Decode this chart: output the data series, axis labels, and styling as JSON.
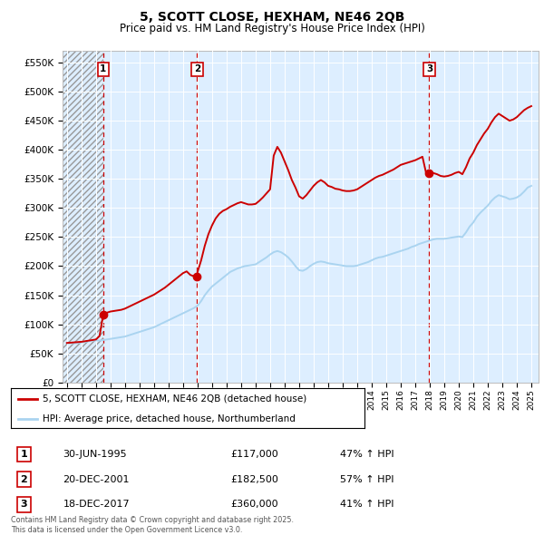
{
  "title_line1": "5, SCOTT CLOSE, HEXHAM, NE46 2QB",
  "title_line2": "Price paid vs. HM Land Registry's House Price Index (HPI)",
  "ylabel_ticks": [
    "£0",
    "£50K",
    "£100K",
    "£150K",
    "£200K",
    "£250K",
    "£300K",
    "£350K",
    "£400K",
    "£450K",
    "£500K",
    "£550K"
  ],
  "ytick_values": [
    0,
    50000,
    100000,
    150000,
    200000,
    250000,
    300000,
    350000,
    400000,
    450000,
    500000,
    550000
  ],
  "ylim": [
    0,
    570000
  ],
  "xlim_start": 1992.7,
  "xlim_end": 2025.5,
  "xtick_years": [
    1993,
    1994,
    1995,
    1996,
    1997,
    1998,
    1999,
    2000,
    2001,
    2002,
    2003,
    2004,
    2005,
    2006,
    2007,
    2008,
    2009,
    2010,
    2011,
    2012,
    2013,
    2014,
    2015,
    2016,
    2017,
    2018,
    2019,
    2020,
    2021,
    2022,
    2023,
    2024,
    2025
  ],
  "hpi_color": "#aad4f0",
  "price_color": "#cc0000",
  "sale_marker_color": "#cc0000",
  "vline_color": "#cc0000",
  "background_chart": "#ddeeff",
  "legend_label_price": "5, SCOTT CLOSE, HEXHAM, NE46 2QB (detached house)",
  "legend_label_hpi": "HPI: Average price, detached house, Northumberland",
  "sale1_date": "30-JUN-1995",
  "sale1_price": 117000,
  "sale1_x": 1995.5,
  "sale1_pct": "47% ↑ HPI",
  "sale2_date": "20-DEC-2001",
  "sale2_price": 182500,
  "sale2_x": 2001.97,
  "sale2_pct": "57% ↑ HPI",
  "sale3_date": "18-DEC-2017",
  "sale3_price": 360000,
  "sale3_x": 2017.97,
  "sale3_pct": "41% ↑ HPI",
  "footer_line1": "Contains HM Land Registry data © Crown copyright and database right 2025.",
  "footer_line2": "This data is licensed under the Open Government Licence v3.0.",
  "hpi_data": [
    [
      1993.0,
      68000
    ],
    [
      1993.25,
      67500
    ],
    [
      1993.5,
      67500
    ],
    [
      1993.75,
      68000
    ],
    [
      1994.0,
      69000
    ],
    [
      1994.25,
      70000
    ],
    [
      1994.5,
      71000
    ],
    [
      1994.75,
      72000
    ],
    [
      1995.0,
      72500
    ],
    [
      1995.25,
      72000
    ],
    [
      1995.5,
      73000
    ],
    [
      1995.75,
      74000
    ],
    [
      1996.0,
      75000
    ],
    [
      1996.25,
      76000
    ],
    [
      1996.5,
      77000
    ],
    [
      1996.75,
      78000
    ],
    [
      1997.0,
      79000
    ],
    [
      1997.25,
      81000
    ],
    [
      1997.5,
      83000
    ],
    [
      1997.75,
      85000
    ],
    [
      1998.0,
      87000
    ],
    [
      1998.25,
      89000
    ],
    [
      1998.5,
      91000
    ],
    [
      1998.75,
      93000
    ],
    [
      1999.0,
      95000
    ],
    [
      1999.25,
      98000
    ],
    [
      1999.5,
      101000
    ],
    [
      1999.75,
      104000
    ],
    [
      2000.0,
      107000
    ],
    [
      2000.25,
      110000
    ],
    [
      2000.5,
      113000
    ],
    [
      2000.75,
      116000
    ],
    [
      2001.0,
      119000
    ],
    [
      2001.25,
      122000
    ],
    [
      2001.5,
      125000
    ],
    [
      2001.75,
      128000
    ],
    [
      2002.0,
      132000
    ],
    [
      2002.25,
      140000
    ],
    [
      2002.5,
      150000
    ],
    [
      2002.75,
      158000
    ],
    [
      2003.0,
      165000
    ],
    [
      2003.25,
      170000
    ],
    [
      2003.5,
      175000
    ],
    [
      2003.75,
      180000
    ],
    [
      2004.0,
      185000
    ],
    [
      2004.25,
      190000
    ],
    [
      2004.5,
      193000
    ],
    [
      2004.75,
      196000
    ],
    [
      2005.0,
      198000
    ],
    [
      2005.25,
      200000
    ],
    [
      2005.5,
      201000
    ],
    [
      2005.75,
      202000
    ],
    [
      2006.0,
      203000
    ],
    [
      2006.25,
      207000
    ],
    [
      2006.5,
      211000
    ],
    [
      2006.75,
      215000
    ],
    [
      2007.0,
      220000
    ],
    [
      2007.25,
      224000
    ],
    [
      2007.5,
      226000
    ],
    [
      2007.75,
      224000
    ],
    [
      2008.0,
      220000
    ],
    [
      2008.25,
      215000
    ],
    [
      2008.5,
      208000
    ],
    [
      2008.75,
      200000
    ],
    [
      2009.0,
      193000
    ],
    [
      2009.25,
      192000
    ],
    [
      2009.5,
      195000
    ],
    [
      2009.75,
      200000
    ],
    [
      2010.0,
      204000
    ],
    [
      2010.25,
      207000
    ],
    [
      2010.5,
      208000
    ],
    [
      2010.75,
      207000
    ],
    [
      2011.0,
      205000
    ],
    [
      2011.25,
      204000
    ],
    [
      2011.5,
      203000
    ],
    [
      2011.75,
      202000
    ],
    [
      2012.0,
      201000
    ],
    [
      2012.25,
      200000
    ],
    [
      2012.5,
      200000
    ],
    [
      2012.75,
      200000
    ],
    [
      2013.0,
      201000
    ],
    [
      2013.25,
      203000
    ],
    [
      2013.5,
      205000
    ],
    [
      2013.75,
      207000
    ],
    [
      2014.0,
      210000
    ],
    [
      2014.25,
      213000
    ],
    [
      2014.5,
      215000
    ],
    [
      2014.75,
      216000
    ],
    [
      2015.0,
      218000
    ],
    [
      2015.25,
      220000
    ],
    [
      2015.5,
      222000
    ],
    [
      2015.75,
      224000
    ],
    [
      2016.0,
      226000
    ],
    [
      2016.25,
      228000
    ],
    [
      2016.5,
      230000
    ],
    [
      2016.75,
      233000
    ],
    [
      2017.0,
      235000
    ],
    [
      2017.25,
      238000
    ],
    [
      2017.5,
      240000
    ],
    [
      2017.75,
      242000
    ],
    [
      2018.0,
      244000
    ],
    [
      2018.25,
      246000
    ],
    [
      2018.5,
      247000
    ],
    [
      2018.75,
      247000
    ],
    [
      2019.0,
      247000
    ],
    [
      2019.25,
      248000
    ],
    [
      2019.5,
      249000
    ],
    [
      2019.75,
      250000
    ],
    [
      2020.0,
      251000
    ],
    [
      2020.25,
      250000
    ],
    [
      2020.5,
      258000
    ],
    [
      2020.75,
      268000
    ],
    [
      2021.0,
      275000
    ],
    [
      2021.25,
      285000
    ],
    [
      2021.5,
      292000
    ],
    [
      2021.75,
      298000
    ],
    [
      2022.0,
      304000
    ],
    [
      2022.25,
      312000
    ],
    [
      2022.5,
      318000
    ],
    [
      2022.75,
      322000
    ],
    [
      2023.0,
      320000
    ],
    [
      2023.25,
      318000
    ],
    [
      2023.5,
      315000
    ],
    [
      2023.75,
      316000
    ],
    [
      2024.0,
      318000
    ],
    [
      2024.25,
      322000
    ],
    [
      2024.5,
      328000
    ],
    [
      2024.75,
      335000
    ],
    [
      2025.0,
      338000
    ]
  ],
  "price_data": [
    [
      1993.0,
      68000
    ],
    [
      1993.25,
      68500
    ],
    [
      1993.5,
      69000
    ],
    [
      1993.75,
      69500
    ],
    [
      1994.0,
      70000
    ],
    [
      1994.25,
      71000
    ],
    [
      1994.5,
      72000
    ],
    [
      1994.75,
      73000
    ],
    [
      1995.0,
      74000
    ],
    [
      1995.25,
      80000
    ],
    [
      1995.5,
      117000
    ],
    [
      1995.75,
      120000
    ],
    [
      1996.0,
      122000
    ],
    [
      1996.25,
      123000
    ],
    [
      1996.5,
      124000
    ],
    [
      1996.75,
      125000
    ],
    [
      1997.0,
      127000
    ],
    [
      1997.25,
      130000
    ],
    [
      1997.5,
      133000
    ],
    [
      1997.75,
      136000
    ],
    [
      1998.0,
      139000
    ],
    [
      1998.25,
      142000
    ],
    [
      1998.5,
      145000
    ],
    [
      1998.75,
      148000
    ],
    [
      1999.0,
      151000
    ],
    [
      1999.25,
      155000
    ],
    [
      1999.5,
      159000
    ],
    [
      1999.75,
      163000
    ],
    [
      2000.0,
      168000
    ],
    [
      2000.25,
      173000
    ],
    [
      2000.5,
      178000
    ],
    [
      2000.75,
      183000
    ],
    [
      2001.0,
      188000
    ],
    [
      2001.25,
      191000
    ],
    [
      2001.5,
      185000
    ],
    [
      2001.75,
      182500
    ],
    [
      2001.97,
      182500
    ],
    [
      2002.0,
      190000
    ],
    [
      2002.25,
      210000
    ],
    [
      2002.5,
      235000
    ],
    [
      2002.75,
      255000
    ],
    [
      2003.0,
      270000
    ],
    [
      2003.25,
      282000
    ],
    [
      2003.5,
      290000
    ],
    [
      2003.75,
      295000
    ],
    [
      2004.0,
      298000
    ],
    [
      2004.25,
      302000
    ],
    [
      2004.5,
      305000
    ],
    [
      2004.75,
      308000
    ],
    [
      2005.0,
      310000
    ],
    [
      2005.25,
      308000
    ],
    [
      2005.5,
      306000
    ],
    [
      2005.75,
      306000
    ],
    [
      2006.0,
      307000
    ],
    [
      2006.25,
      312000
    ],
    [
      2006.5,
      318000
    ],
    [
      2006.75,
      325000
    ],
    [
      2007.0,
      332000
    ],
    [
      2007.25,
      390000
    ],
    [
      2007.5,
      405000
    ],
    [
      2007.75,
      395000
    ],
    [
      2008.0,
      380000
    ],
    [
      2008.25,
      365000
    ],
    [
      2008.5,
      348000
    ],
    [
      2008.75,
      335000
    ],
    [
      2009.0,
      320000
    ],
    [
      2009.25,
      316000
    ],
    [
      2009.5,
      322000
    ],
    [
      2009.75,
      330000
    ],
    [
      2010.0,
      338000
    ],
    [
      2010.25,
      344000
    ],
    [
      2010.5,
      348000
    ],
    [
      2010.75,
      344000
    ],
    [
      2011.0,
      338000
    ],
    [
      2011.25,
      336000
    ],
    [
      2011.5,
      333000
    ],
    [
      2011.75,
      332000
    ],
    [
      2012.0,
      330000
    ],
    [
      2012.25,
      329000
    ],
    [
      2012.5,
      329000
    ],
    [
      2012.75,
      330000
    ],
    [
      2013.0,
      332000
    ],
    [
      2013.25,
      336000
    ],
    [
      2013.5,
      340000
    ],
    [
      2013.75,
      344000
    ],
    [
      2014.0,
      348000
    ],
    [
      2014.25,
      352000
    ],
    [
      2014.5,
      355000
    ],
    [
      2014.75,
      357000
    ],
    [
      2015.0,
      360000
    ],
    [
      2015.25,
      363000
    ],
    [
      2015.5,
      366000
    ],
    [
      2015.75,
      370000
    ],
    [
      2016.0,
      374000
    ],
    [
      2016.25,
      376000
    ],
    [
      2016.5,
      378000
    ],
    [
      2016.75,
      380000
    ],
    [
      2017.0,
      382000
    ],
    [
      2017.25,
      385000
    ],
    [
      2017.5,
      388000
    ],
    [
      2017.75,
      360000
    ],
    [
      2017.97,
      360000
    ],
    [
      2018.0,
      362000
    ],
    [
      2018.25,
      360000
    ],
    [
      2018.5,
      358000
    ],
    [
      2018.75,
      355000
    ],
    [
      2019.0,
      354000
    ],
    [
      2019.25,
      355000
    ],
    [
      2019.5,
      357000
    ],
    [
      2019.75,
      360000
    ],
    [
      2020.0,
      362000
    ],
    [
      2020.25,
      358000
    ],
    [
      2020.5,
      370000
    ],
    [
      2020.75,
      385000
    ],
    [
      2021.0,
      395000
    ],
    [
      2021.25,
      408000
    ],
    [
      2021.5,
      418000
    ],
    [
      2021.75,
      428000
    ],
    [
      2022.0,
      436000
    ],
    [
      2022.25,
      447000
    ],
    [
      2022.5,
      456000
    ],
    [
      2022.75,
      462000
    ],
    [
      2023.0,
      458000
    ],
    [
      2023.25,
      454000
    ],
    [
      2023.5,
      450000
    ],
    [
      2023.75,
      452000
    ],
    [
      2024.0,
      456000
    ],
    [
      2024.25,
      462000
    ],
    [
      2024.5,
      468000
    ],
    [
      2024.75,
      472000
    ],
    [
      2025.0,
      475000
    ]
  ]
}
